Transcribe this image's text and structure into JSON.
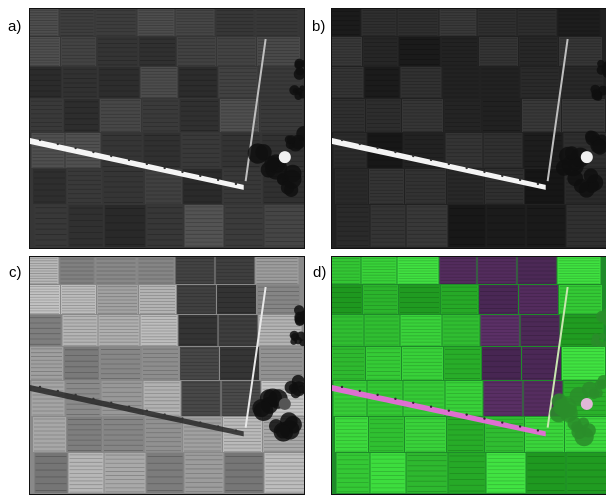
{
  "panels": [
    {
      "id": "a",
      "label": "a)",
      "mode": "gray-dark"
    },
    {
      "id": "b",
      "label": "b)",
      "mode": "gray-darker"
    },
    {
      "id": "c",
      "label": "c)",
      "mode": "gray-light"
    },
    {
      "id": "d",
      "label": "d)",
      "mode": "false-color"
    }
  ],
  "colors": {
    "road_bright": "#ffffff",
    "road_magenta": "#e86ad9",
    "field_green": "#2fd02f",
    "field_purple": "#5a2c63",
    "vegetation_dark": "#0e1a0e"
  }
}
